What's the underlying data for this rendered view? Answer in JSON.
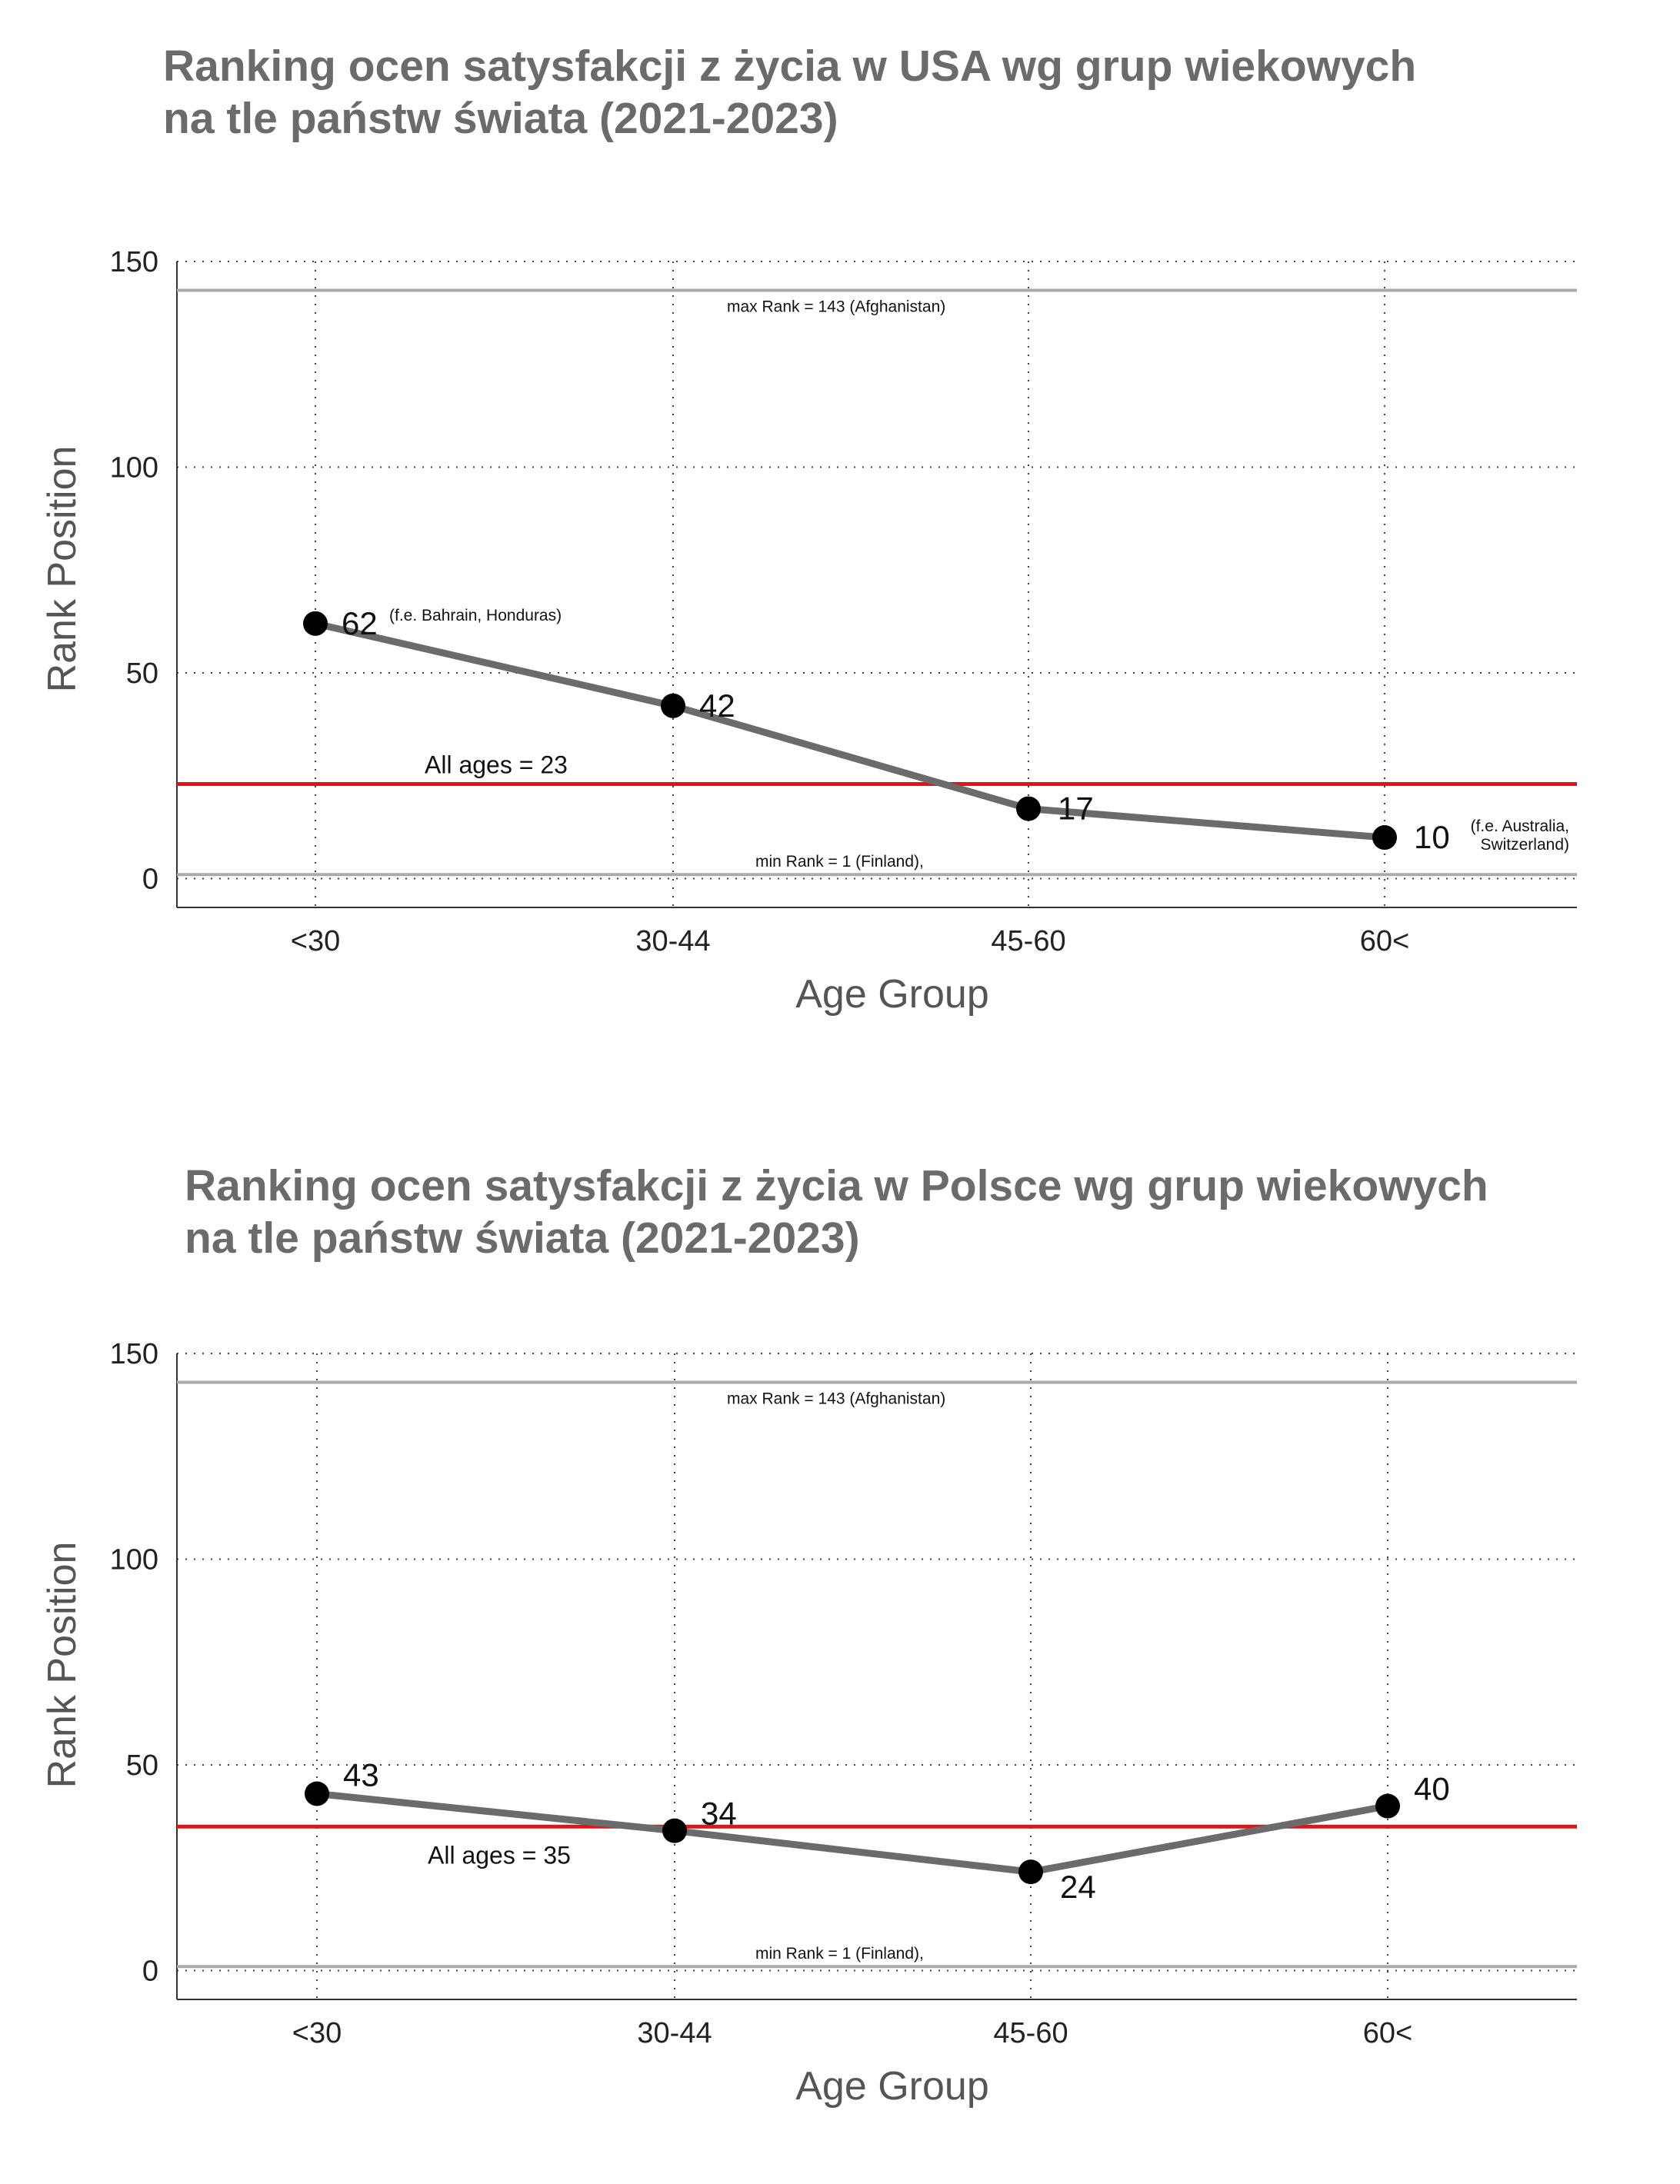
{
  "charts": [
    {
      "title_line1": "Ranking ocen satysfakcji z życia w USA wg grup wiekowych",
      "title_line2": "na tle państw świata (2021-2023)",
      "chart_data": {
        "type": "line",
        "categories": [
          "<30",
          "30-44",
          "45-60",
          "60<"
        ],
        "series": [
          {
            "values": [
              62,
              42,
              17,
              10
            ]
          }
        ],
        "xlabel": "Age Group",
        "ylabel": "Rank Position",
        "ylim": [
          -7,
          150
        ],
        "yticks": [
          0,
          50,
          100,
          150
        ],
        "grid": "dotted",
        "reference_lines": [
          {
            "value": 143,
            "label": "max Rank = 143 (Afghanistan)",
            "color": "#aaaaaa"
          },
          {
            "value": 1,
            "label": "min Rank = 1 (Finland),",
            "color": "#aaaaaa"
          },
          {
            "value": 23,
            "label": "All ages = 23",
            "color": "#e31414"
          }
        ],
        "point_labels": [
          "62",
          "42",
          "17",
          "10"
        ],
        "annotations": [
          {
            "category": "<30",
            "lines": [
              "(f.e. Bahrain, Honduras)"
            ]
          },
          {
            "category": "60<",
            "lines": [
              "(f.e. Australia,",
              "Switzerland)"
            ]
          }
        ],
        "line_color": "#6b6b6b",
        "marker_color": "#000000"
      }
    },
    {
      "title_line1": "Ranking ocen satysfakcji z życia w Polsce wg grup wiekowych",
      "title_line2": "na tle państw świata (2021-2023)",
      "chart_data": {
        "type": "line",
        "categories": [
          "<30",
          "30-44",
          "45-60",
          "60<"
        ],
        "series": [
          {
            "values": [
              43,
              34,
              24,
              40
            ]
          }
        ],
        "xlabel": "Age Group",
        "ylabel": "Rank Position",
        "ylim": [
          -7,
          150
        ],
        "yticks": [
          0,
          50,
          100,
          150
        ],
        "grid": "dotted",
        "reference_lines": [
          {
            "value": 143,
            "label": "max Rank = 143 (Afghanistan)",
            "color": "#aaaaaa"
          },
          {
            "value": 1,
            "label": "min Rank = 1 (Finland),",
            "color": "#aaaaaa"
          },
          {
            "value": 35,
            "label": "All ages = 35",
            "color": "#e31414"
          }
        ],
        "point_labels": [
          "43",
          "34",
          "24",
          "40"
        ],
        "annotations": [],
        "line_color": "#6b6b6b",
        "marker_color": "#000000"
      }
    }
  ]
}
